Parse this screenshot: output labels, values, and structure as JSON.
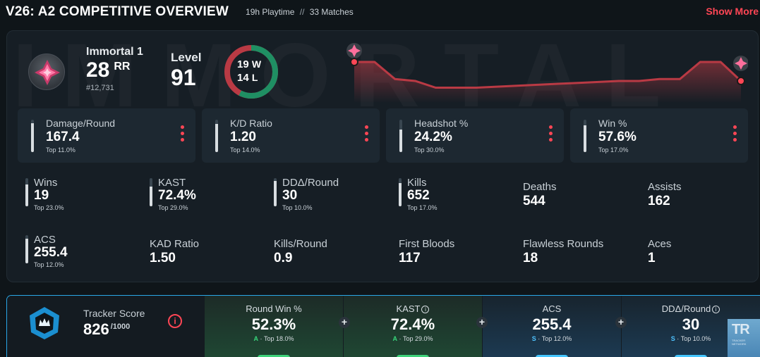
{
  "header": {
    "title": "V26: A2 COMPETITIVE OVERVIEW",
    "playtime": "19h Playtime",
    "separator": "//",
    "matches": "33 Matches",
    "show_more": "Show More"
  },
  "profile": {
    "watermark": "IMMORTAL",
    "rank_name": "Immortal 1",
    "rr_value": "28",
    "rr_label": "RR",
    "leaderboard_pos": "#12,731",
    "level_label": "Level",
    "level_value": "91",
    "wins": "19",
    "wins_label": "W",
    "losses": "14",
    "losses_label": "L",
    "win_fraction": 0.576
  },
  "rr_history": [
    100,
    100,
    82,
    80,
    73,
    73,
    73,
    74,
    75,
    76,
    77,
    78,
    79,
    80,
    80,
    82,
    82,
    100,
    100,
    80
  ],
  "big_stats": [
    {
      "label": "Damage/Round",
      "value": "167.4",
      "top": "Top 11.0%",
      "fill": 0.89
    },
    {
      "label": "K/D Ratio",
      "value": "1.20",
      "top": "Top 14.0%",
      "fill": 0.86
    },
    {
      "label": "Headshot %",
      "value": "24.2%",
      "top": "Top 30.0%",
      "fill": 0.7
    },
    {
      "label": "Win %",
      "value": "57.6%",
      "top": "Top 17.0%",
      "fill": 0.83
    }
  ],
  "small_stats": [
    {
      "label": "Wins",
      "value": "19",
      "top": "Top 23.0%",
      "fill": 0.77
    },
    {
      "label": "KAST",
      "value": "72.4%",
      "top": "Top 29.0%",
      "fill": 0.71
    },
    {
      "label": "DDΔ/Round",
      "value": "30",
      "top": "Top 10.0%",
      "fill": 0.9
    },
    {
      "label": "Kills",
      "value": "652",
      "top": "Top 17.0%",
      "fill": 0.83
    },
    {
      "label": "Deaths",
      "value": "544"
    },
    {
      "label": "Assists",
      "value": "162"
    },
    {
      "label": "ACS",
      "value": "255.4",
      "top": "Top 12.0%",
      "fill": 0.88
    },
    {
      "label": "KAD Ratio",
      "value": "1.50"
    },
    {
      "label": "Kills/Round",
      "value": "0.9"
    },
    {
      "label": "First Bloods",
      "value": "117"
    },
    {
      "label": "Flawless Rounds",
      "value": "18"
    },
    {
      "label": "Aces",
      "value": "1"
    }
  ],
  "tracker": {
    "label": "Tracker Score",
    "value": "826",
    "max": "/1000",
    "info_icon": "i",
    "plus_icon": "+",
    "metrics": [
      {
        "label": "Round Win %",
        "value": "52.3%",
        "grade": "A",
        "top": "Top 18.0%",
        "info": false
      },
      {
        "label": "KAST",
        "value": "72.4%",
        "grade": "A",
        "top": "Top 29.0%",
        "info": true
      },
      {
        "label": "ACS",
        "value": "255.4",
        "grade": "S",
        "top": "Top 12.0%",
        "info": false
      },
      {
        "label": "DDΔ/Round",
        "value": "30",
        "grade": "S",
        "top": "Top 10.0%",
        "info": true
      }
    ]
  },
  "badge": {
    "text": "TR",
    "subtext": "TRACKER NETWORK"
  },
  "colors": {
    "accent": "#ff4655",
    "win": "#1f8f63",
    "loss": "#b93a44",
    "grade_a": "#37d67a",
    "grade_s": "#4fc3ff"
  }
}
